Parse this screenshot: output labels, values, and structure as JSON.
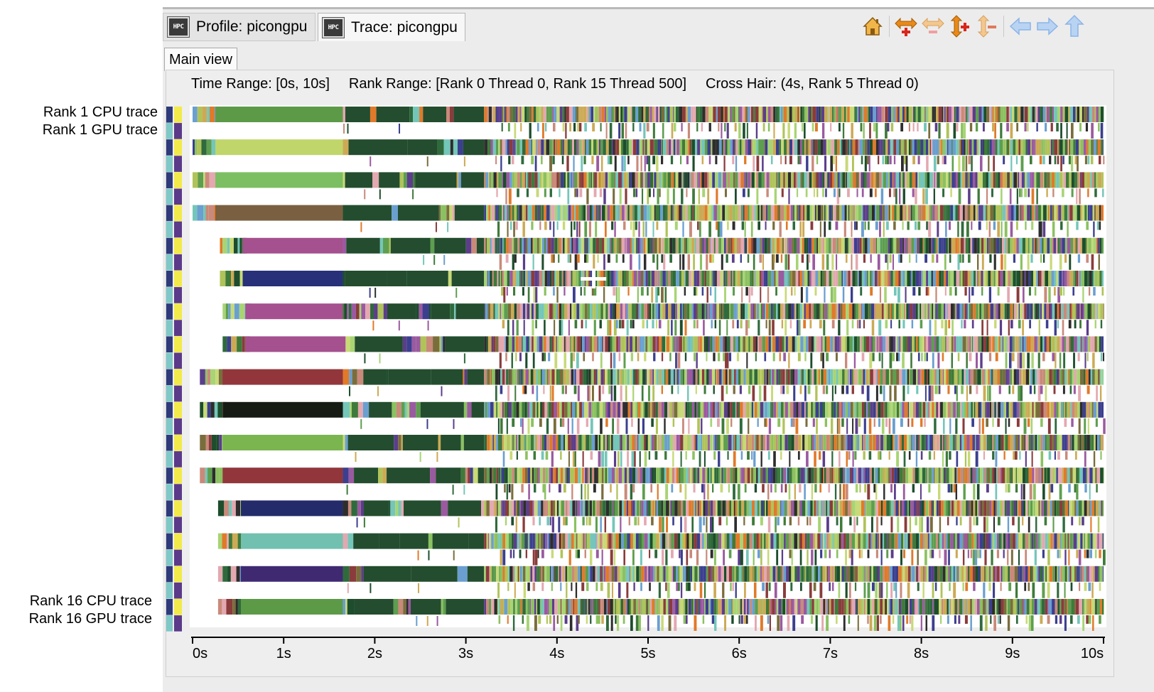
{
  "side_labels": {
    "rank1_cpu": "Rank 1 CPU trace",
    "rank1_gpu": "Rank 1 GPU trace",
    "rank16_cpu": "Rank 16 CPU trace",
    "rank16_gpu": "Rank 16 GPU trace"
  },
  "tabs": [
    {
      "label": "Profile: picongpu",
      "icon": "hpc-icon"
    },
    {
      "label": "Trace: picongpu",
      "icon": "hpc-trace-icon"
    }
  ],
  "toolbar": {
    "icons": [
      "home-icon",
      "zoom-in-time-icon",
      "zoom-out-time-icon",
      "zoom-in-rank-icon",
      "zoom-out-rank-icon",
      "back-arrow-icon",
      "forward-arrow-icon",
      "up-arrow-icon"
    ],
    "accent": "#e98a19",
    "accent_light": "#f4c88c",
    "nav_color": "#8ab4e8"
  },
  "view_tab": "Main view",
  "info": {
    "time_range": "Time Range: [0s, 10s]",
    "rank_range": "Rank Range: [Rank 0 Thread 0, Rank 15 Thread 500]",
    "cross_hair": "Cross Hair: (4s, Rank 5 Thread 0)"
  },
  "axis": {
    "ticks": [
      "0s",
      "1s",
      "2s",
      "3s",
      "4s",
      "5s",
      "6s",
      "7s",
      "8s",
      "9s",
      "10s"
    ],
    "range": [
      0,
      10
    ]
  },
  "crosshair": {
    "time": 4.4,
    "rank": 5
  },
  "ranks": [
    {
      "start": 0.0,
      "main_end": 1.65,
      "main_color": "#5d9a48"
    },
    {
      "start": 0.0,
      "main_end": 1.65,
      "main_color": "#c0d66a"
    },
    {
      "start": 0.0,
      "main_end": 1.65,
      "main_color": "#7cbf62"
    },
    {
      "start": 0.0,
      "main_end": 1.65,
      "main_color": "#7a6040"
    },
    {
      "start": 0.3,
      "main_end": 1.65,
      "main_color": "#a5508f"
    },
    {
      "start": 0.3,
      "main_end": 1.65,
      "main_color": "#28307a"
    },
    {
      "start": 0.33,
      "main_end": 1.65,
      "main_color": "#a5508f"
    },
    {
      "start": 0.33,
      "main_end": 1.68,
      "main_color": "#a5508f"
    },
    {
      "start": 0.08,
      "main_end": 1.65,
      "main_color": "#92363c"
    },
    {
      "start": 0.08,
      "main_end": 1.65,
      "main_color": "#161c14"
    },
    {
      "start": 0.08,
      "main_end": 1.65,
      "main_color": "#7ab54f"
    },
    {
      "start": 0.08,
      "main_end": 1.65,
      "main_color": "#92363c"
    },
    {
      "start": 0.28,
      "main_end": 1.65,
      "main_color": "#232b6a"
    },
    {
      "start": 0.28,
      "main_end": 1.65,
      "main_color": "#72c0b0"
    },
    {
      "start": 0.28,
      "main_end": 1.65,
      "main_color": "#3f2a72"
    },
    {
      "start": 0.28,
      "main_end": 1.65,
      "main_color": "#5d9a48"
    }
  ],
  "palette": [
    "#3f7a3a",
    "#5e9e4f",
    "#8cc161",
    "#a8d474",
    "#c8d978",
    "#2f6a3c",
    "#6a9fd0",
    "#3b3f8e",
    "#5b3e8a",
    "#9a5aa0",
    "#c98a7a",
    "#e3a8b0",
    "#7a6d3c",
    "#ccaa55",
    "#2d2d2d",
    "#8a3b3b",
    "#e07a2a",
    "#74c6b9",
    "#1d4d2c",
    "#b0c35a"
  ],
  "lane_colors": [
    "#2e3a7a",
    "#7fc8c8",
    "#f2ea4a",
    "#5b3a8a"
  ]
}
